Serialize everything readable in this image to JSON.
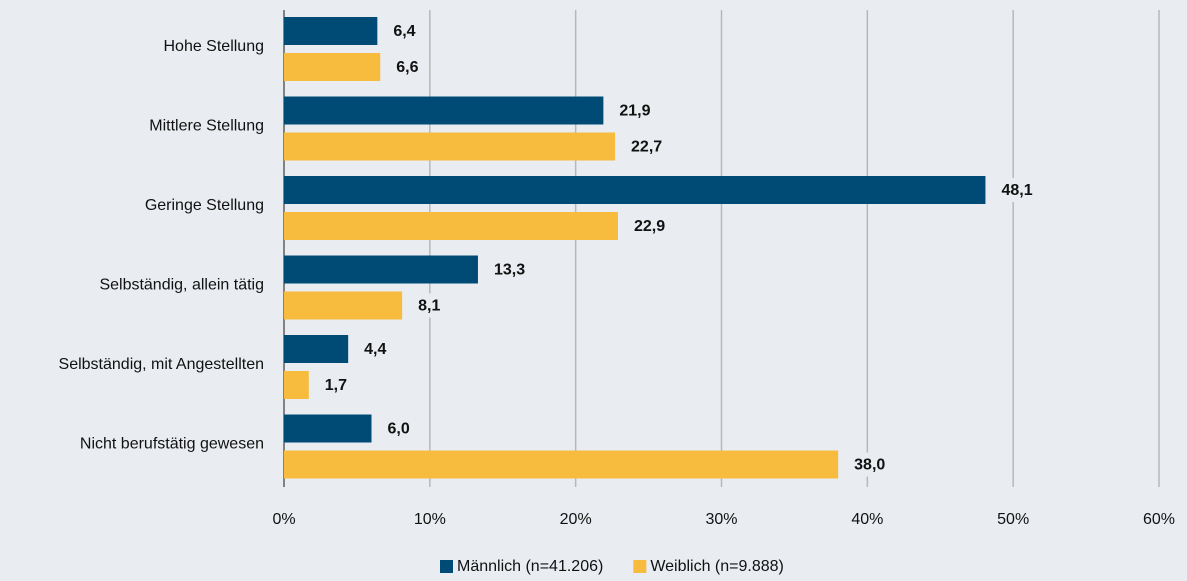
{
  "chart_data": {
    "type": "bar",
    "orientation": "horizontal",
    "categories": [
      "Hohe Stellung",
      "Mittlere Stellung",
      "Geringe Stellung",
      "Selbständig, allein tätig",
      "Selbständig, mit Angestellten",
      "Nicht berufstätig gewesen"
    ],
    "series": [
      {
        "name": "Männlich (n=41.206)",
        "color": "#004b76",
        "values": [
          6.4,
          21.9,
          48.1,
          13.3,
          4.4,
          6.0
        ],
        "value_labels": [
          "6,4",
          "21,9",
          "48,1",
          "13,3",
          "4,4",
          "6,0"
        ]
      },
      {
        "name": "Weiblich (n=9.888)",
        "color": "#f7bb3d",
        "values": [
          6.6,
          22.7,
          22.9,
          8.1,
          1.7,
          38.0
        ],
        "value_labels": [
          "6,6",
          "22,7",
          "22,9",
          "8,1",
          "1,7",
          "38,0"
        ]
      }
    ],
    "xlim": [
      0,
      60
    ],
    "xticks": [
      {
        "value": 0,
        "label": "0%"
      },
      {
        "value": 10,
        "label": "10%"
      },
      {
        "value": 20,
        "label": "20%"
      },
      {
        "value": 30,
        "label": "30%"
      },
      {
        "value": 40,
        "label": "40%"
      },
      {
        "value": 50,
        "label": "50%"
      },
      {
        "value": 60,
        "label": "60%"
      }
    ],
    "grid": true,
    "legend": "bottom"
  }
}
